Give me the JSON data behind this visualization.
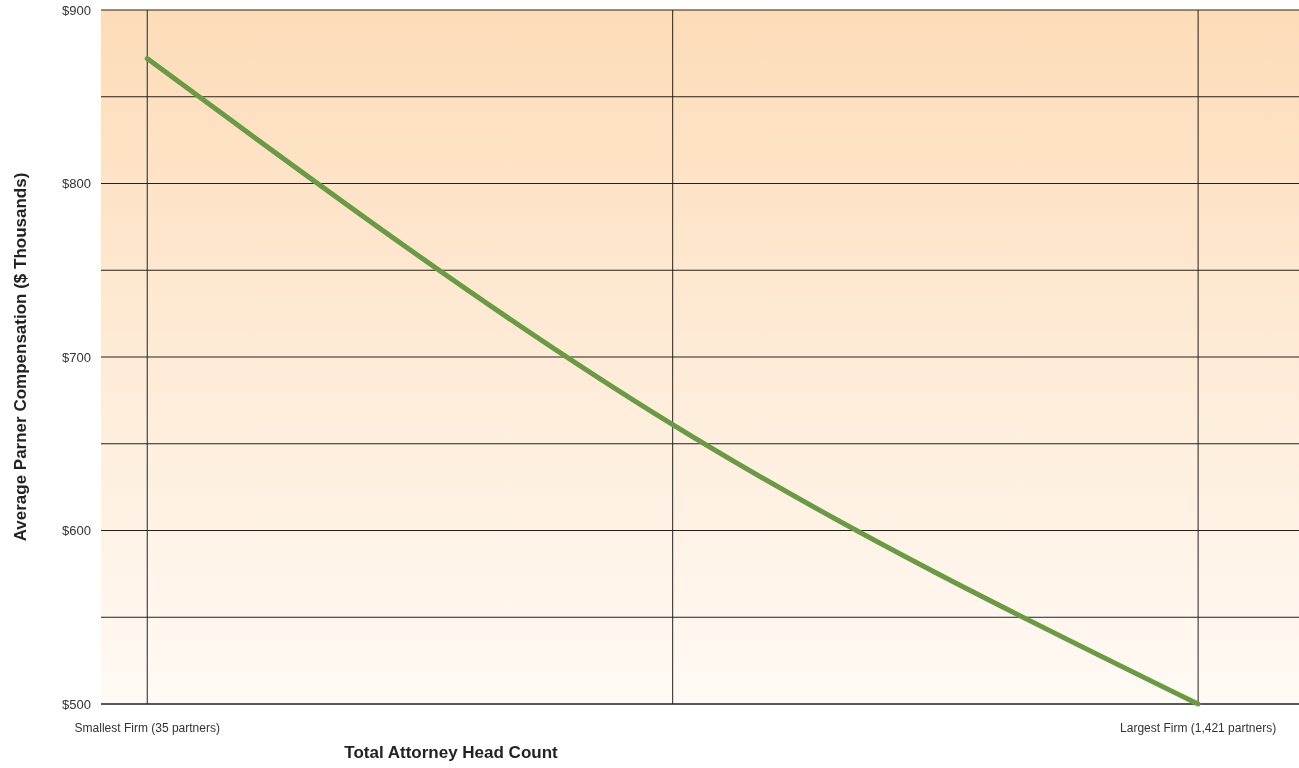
{
  "chart_data": {
    "type": "line",
    "xlabel": "Total Attorney Head Count",
    "ylabel": "Average Parner Compensation ($ Thousands)",
    "categories": [
      "Smallest Firm (35 partners)",
      null,
      "Largest Firm (1,421 partners)"
    ],
    "series": [
      {
        "color": "#6a9a45",
        "values": [
          872,
          661,
          500
        ]
      }
    ],
    "ylim": [
      500,
      900
    ],
    "yticks": [
      {
        "value": 500,
        "label": "$500"
      },
      {
        "value": 550,
        "label": null
      },
      {
        "value": 600,
        "label": "$600"
      },
      {
        "value": 650,
        "label": null
      },
      {
        "value": 700,
        "label": "$700"
      },
      {
        "value": 750,
        "label": null
      },
      {
        "value": 800,
        "label": "$800"
      },
      {
        "value": 850,
        "label": null
      },
      {
        "value": 900,
        "label": "$900"
      }
    ],
    "grid": true,
    "marker": "none",
    "line_style": "solid"
  }
}
